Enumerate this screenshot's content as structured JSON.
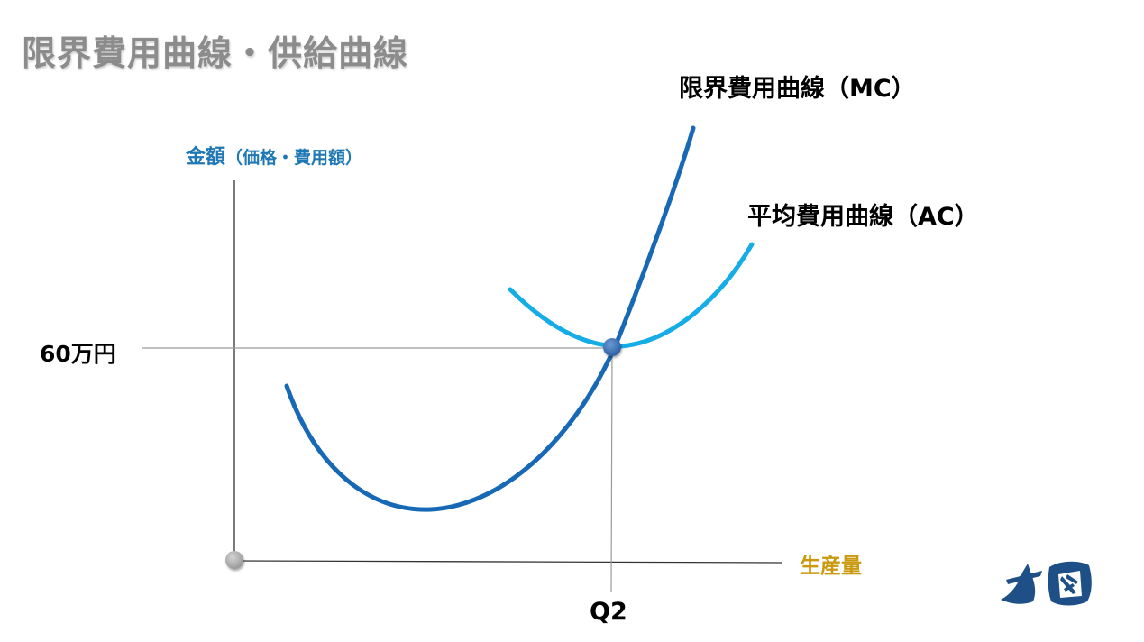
{
  "title": "限界費用曲線・供給曲線",
  "y_axis_label": {
    "main": "金額",
    "sub": "（価格・費用額）"
  },
  "x_axis_label": "生産量",
  "curves": {
    "mc": {
      "label": "限界費用曲線（MC）",
      "color": "#1769b5"
    },
    "ac": {
      "label": "平均費用曲線（AC）",
      "color": "#16ade6"
    }
  },
  "reference": {
    "price_label": "60万円",
    "quantity_label": "Q2"
  },
  "colors": {
    "title": "#8c8c8c",
    "y_axis_label": "#1f78b4",
    "x_axis_label": "#c99a0e",
    "axes": "#333333",
    "guides": "#9a9a9a",
    "intersection_point": "#3b6fb2",
    "origin_point": "#a8a8a8",
    "logo": "#1e4f86"
  },
  "logo": {
    "icon": "brand-logo-icon"
  }
}
